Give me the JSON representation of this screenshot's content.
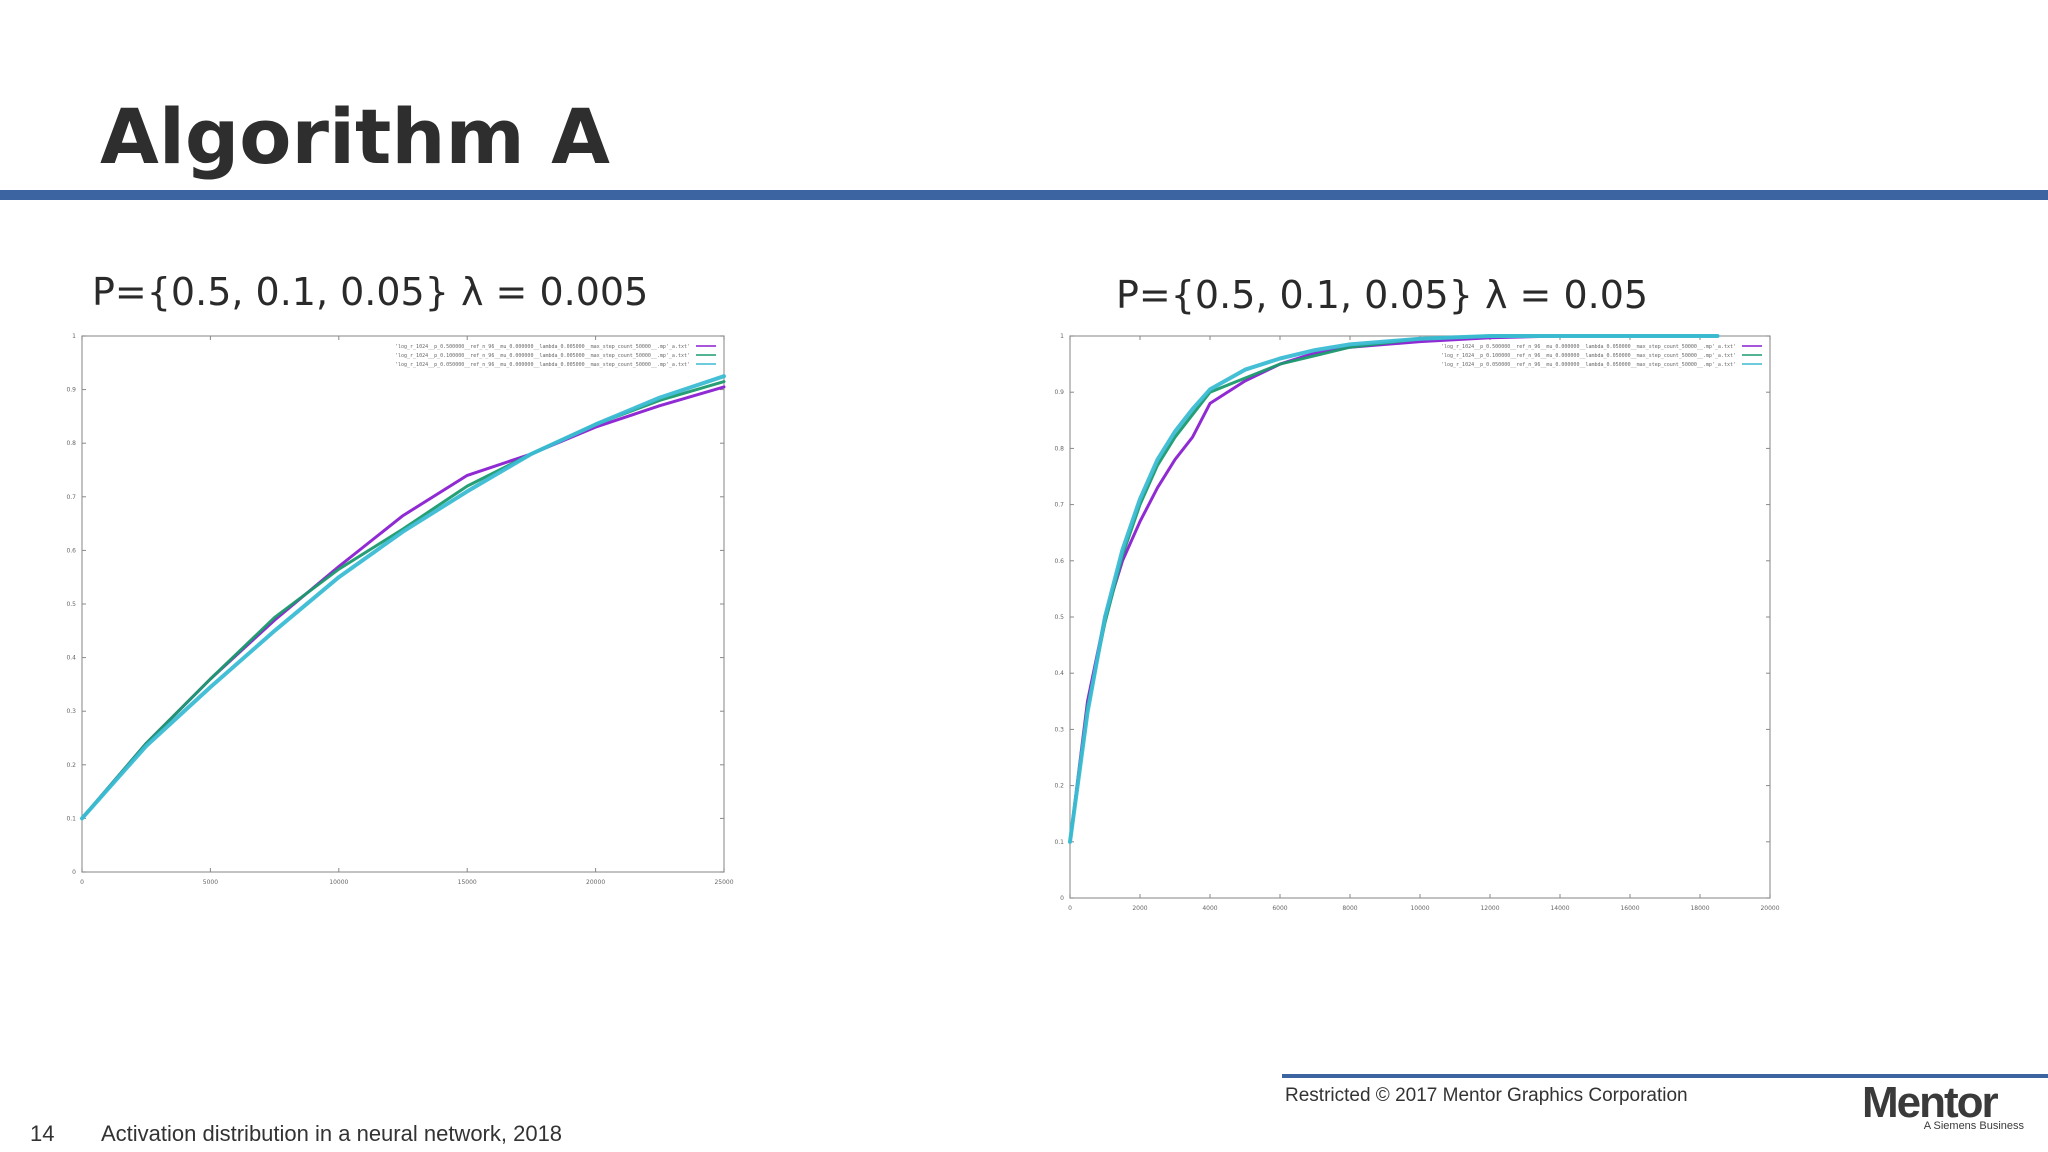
{
  "slide": {
    "title": "Algorithm A",
    "accent_color": "#3b64a1"
  },
  "footer": {
    "page_number": "14",
    "description": "Activation distribution in a neural network, 2018",
    "restricted": "Restricted © 2017 Mentor Graphics Corporation",
    "logo_text": "Mentor",
    "logo_sub": "A Siemens Business"
  },
  "chart_data": [
    {
      "type": "line",
      "title": "P={0.5, 0.1, 0.05}  λ = 0.005",
      "xlabel": "",
      "ylabel": "",
      "xlim": [
        0,
        25000
      ],
      "ylim": [
        0,
        1
      ],
      "x_ticks": [
        0,
        5000,
        10000,
        15000,
        20000,
        25000
      ],
      "y_ticks": [
        0,
        0.1,
        0.2,
        0.3,
        0.4,
        0.5,
        0.6,
        0.7,
        0.8,
        0.9,
        1
      ],
      "legend_position": "top-right",
      "series": [
        {
          "name": "'log_r_1024__p_0.500000__ref_n_96__mu_0.000000__lambda_0.005000__max_step_count_50000__.mp'_a.txt'",
          "color": "#8a1fd1",
          "x": [
            0,
            2500,
            5000,
            7500,
            10000,
            12500,
            15000,
            17500,
            20000,
            22500,
            25000
          ],
          "y": [
            0.1,
            0.24,
            0.36,
            0.47,
            0.57,
            0.665,
            0.74,
            0.78,
            0.83,
            0.87,
            0.905
          ]
        },
        {
          "name": "'log_r_1024__p_0.100000__ref_n_96__mu_0.000000__lambda_0.005000__max_step_count_50000__.mp'_a.txt'",
          "color": "#1b9a6e",
          "x": [
            0,
            2500,
            5000,
            7500,
            10000,
            12500,
            15000,
            17500,
            20000,
            22500,
            25000
          ],
          "y": [
            0.1,
            0.24,
            0.36,
            0.475,
            0.565,
            0.64,
            0.72,
            0.78,
            0.835,
            0.88,
            0.915
          ]
        },
        {
          "name": "'log_r_1024__p_0.050000__ref_n_96__mu_0.000000__lambda_0.005000__max_step_count_50000__.mp'_a.txt'",
          "color": "#3bbcd4",
          "x": [
            0,
            2500,
            5000,
            7500,
            10000,
            12500,
            15000,
            17500,
            20000,
            22500,
            25000
          ],
          "y": [
            0.1,
            0.235,
            0.345,
            0.45,
            0.55,
            0.635,
            0.71,
            0.78,
            0.835,
            0.885,
            0.925
          ]
        }
      ]
    },
    {
      "type": "line",
      "title": "P={0.5, 0.1, 0.05}  λ = 0.05",
      "xlabel": "",
      "ylabel": "",
      "xlim": [
        0,
        20000
      ],
      "ylim": [
        0,
        1
      ],
      "x_ticks": [
        0,
        2000,
        4000,
        6000,
        8000,
        10000,
        12000,
        14000,
        16000,
        18000,
        20000
      ],
      "y_ticks": [
        0,
        0.1,
        0.2,
        0.3,
        0.4,
        0.5,
        0.6,
        0.7,
        0.8,
        0.9,
        1
      ],
      "legend_position": "top-right",
      "series": [
        {
          "name": "'log_r_1024__p_0.500000__ref_n_96__mu_0.000000__lambda_0.050000__max_step_count_50000__.mp'_a.txt'",
          "color": "#8a1fd1",
          "x": [
            0,
            500,
            1000,
            1500,
            2000,
            2500,
            3000,
            3500,
            4000,
            5000,
            6000,
            7000,
            8000,
            10000,
            12000,
            14000,
            16000,
            18500
          ],
          "y": [
            0.1,
            0.35,
            0.5,
            0.6,
            0.67,
            0.73,
            0.78,
            0.82,
            0.88,
            0.92,
            0.95,
            0.97,
            0.98,
            0.99,
            0.997,
            1,
            1,
            1
          ]
        },
        {
          "name": "'log_r_1024__p_0.100000__ref_n_96__mu_0.000000__lambda_0.050000__max_step_count_50000__.mp'_a.txt'",
          "color": "#1b9a6e",
          "x": [
            0,
            500,
            1000,
            1500,
            2000,
            2500,
            3000,
            3500,
            4000,
            5000,
            6000,
            7000,
            8000,
            10000,
            12000,
            14000,
            16000,
            18500
          ],
          "y": [
            0.1,
            0.34,
            0.49,
            0.61,
            0.7,
            0.77,
            0.82,
            0.86,
            0.9,
            0.925,
            0.95,
            0.965,
            0.98,
            0.995,
            1,
            1,
            1,
            1
          ]
        },
        {
          "name": "'log_r_1024__p_0.050000__ref_n_96__mu_0.000000__lambda_0.050000__max_step_count_50000__.mp'_a.txt'",
          "color": "#3bbcd4",
          "x": [
            0,
            500,
            1000,
            1500,
            2000,
            2500,
            3000,
            3500,
            4000,
            5000,
            6000,
            7000,
            8000,
            10000,
            12000,
            14000,
            16000,
            18500
          ],
          "y": [
            0.1,
            0.33,
            0.5,
            0.62,
            0.71,
            0.78,
            0.83,
            0.87,
            0.905,
            0.94,
            0.96,
            0.975,
            0.985,
            0.995,
            1,
            1,
            1,
            1
          ]
        }
      ]
    }
  ]
}
